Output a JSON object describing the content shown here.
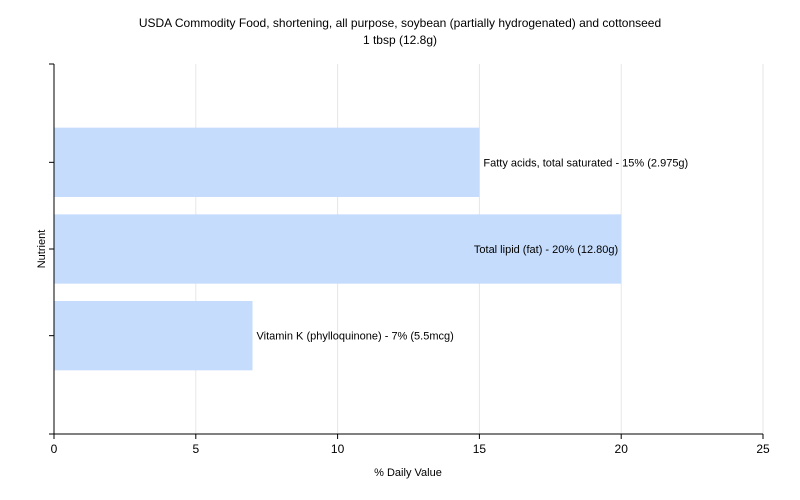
{
  "chart_data": {
    "type": "bar",
    "orientation": "horizontal",
    "title": "USDA Commodity Food, shortening, all purpose, soybean (partially hydrogenated) and cottonseed",
    "subtitle": "1 tbsp (12.8g)",
    "xlabel": "% Daily Value",
    "ylabel": "Nutrient",
    "xlim": [
      0,
      25
    ],
    "xticks": [
      0,
      5,
      10,
      15,
      20,
      25
    ],
    "grid": true,
    "bar_color": "#c6dcfc",
    "categories": [
      "Fatty acids, total saturated",
      "Total lipid (fat)",
      "Vitamin K (phylloquinone)"
    ],
    "values": [
      15,
      20,
      7
    ],
    "labels": [
      "Fatty acids, total saturated - 15% (2.975g)",
      "Total lipid (fat) - 20% (12.80g)",
      "Vitamin K (phylloquinone) - 7% (5.5mcg)"
    ]
  }
}
